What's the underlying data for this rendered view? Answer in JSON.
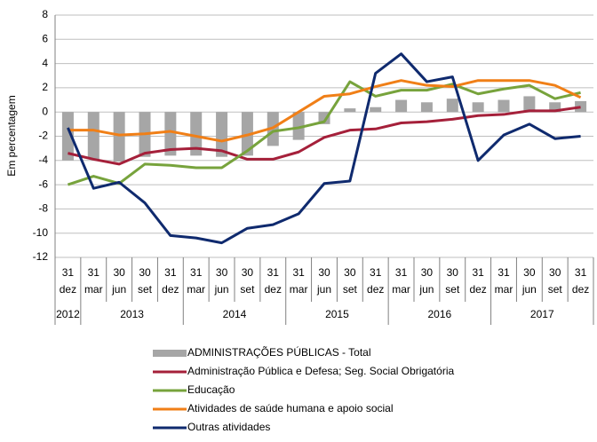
{
  "chart_data": {
    "type": "bar-line",
    "y_label": "Em percentagem",
    "categories": [
      [
        "31",
        "dez"
      ],
      [
        "31",
        "mar"
      ],
      [
        "30",
        "jun"
      ],
      [
        "30",
        "set"
      ],
      [
        "31",
        "dez"
      ],
      [
        "31",
        "mar"
      ],
      [
        "30",
        "jun"
      ],
      [
        "30",
        "set"
      ],
      [
        "31",
        "dez"
      ],
      [
        "31",
        "mar"
      ],
      [
        "30",
        "jun"
      ],
      [
        "30",
        "set"
      ],
      [
        "31",
        "dez"
      ],
      [
        "31",
        "mar"
      ],
      [
        "30",
        "jun"
      ],
      [
        "30",
        "set"
      ],
      [
        "31",
        "dez"
      ],
      [
        "31",
        "mar"
      ],
      [
        "30",
        "jun"
      ],
      [
        "30",
        "set"
      ],
      [
        "31",
        "dez"
      ]
    ],
    "groups": [
      {
        "label": "2012",
        "count": 1
      },
      {
        "label": "2013",
        "count": 4
      },
      {
        "label": "2014",
        "count": 4
      },
      {
        "label": "2015",
        "count": 4
      },
      {
        "label": "2016",
        "count": 4
      },
      {
        "label": "2017",
        "count": 4
      }
    ],
    "ylim": [
      -12,
      8
    ],
    "yticks": [
      -12,
      -10,
      -8,
      -6,
      -4,
      -2,
      0,
      2,
      4,
      6,
      8
    ],
    "grid": true,
    "series": [
      {
        "name": "ADMINISTRAÇÕES PÚBLICAS - Total",
        "kind": "bar",
        "color": "#a6a6a6",
        "values": [
          -4.0,
          -3.9,
          -4.1,
          -3.7,
          -3.6,
          -3.6,
          -3.7,
          -3.6,
          -2.8,
          -2.3,
          -1.0,
          0.3,
          0.4,
          1.0,
          0.8,
          1.1,
          0.8,
          1.0,
          1.3,
          0.8,
          0.9
        ]
      },
      {
        "name": "Administração Pública e Defesa; Seg. Social Obrigatória",
        "kind": "line",
        "color": "#a5203a",
        "values": [
          -3.4,
          -3.9,
          -4.3,
          -3.4,
          -3.1,
          -3.0,
          -3.2,
          -3.9,
          -3.9,
          -3.3,
          -2.1,
          -1.5,
          -1.4,
          -0.9,
          -0.8,
          -0.6,
          -0.3,
          -0.2,
          0.1,
          0.1,
          0.4
        ]
      },
      {
        "name": "Educação",
        "kind": "line",
        "color": "#77a33c",
        "values": [
          -6.0,
          -5.3,
          -5.9,
          -4.3,
          -4.4,
          -4.6,
          -4.6,
          -3.2,
          -1.6,
          -1.3,
          -0.8,
          2.5,
          1.3,
          1.8,
          1.8,
          2.3,
          1.5,
          1.9,
          2.2,
          1.1,
          1.6
        ]
      },
      {
        "name": "Atividades de saúde humana e apoio social",
        "kind": "line",
        "color": "#f07f17",
        "values": [
          -1.5,
          -1.5,
          -1.9,
          -1.8,
          -1.6,
          -2.0,
          -2.4,
          -1.9,
          -1.3,
          0.0,
          1.3,
          1.5,
          2.1,
          2.6,
          2.2,
          2.1,
          2.6,
          2.6,
          2.6,
          2.2,
          1.2
        ]
      },
      {
        "name": "Outras atividades",
        "kind": "line",
        "color": "#0f2a6e",
        "values": [
          -1.3,
          -6.3,
          -5.8,
          -7.5,
          -10.2,
          -10.4,
          -10.8,
          -9.6,
          -9.3,
          -8.4,
          -5.9,
          -5.7,
          3.2,
          4.8,
          2.5,
          2.9,
          -4.0,
          -1.9,
          -1.0,
          -2.2,
          -2.0
        ]
      }
    ]
  }
}
